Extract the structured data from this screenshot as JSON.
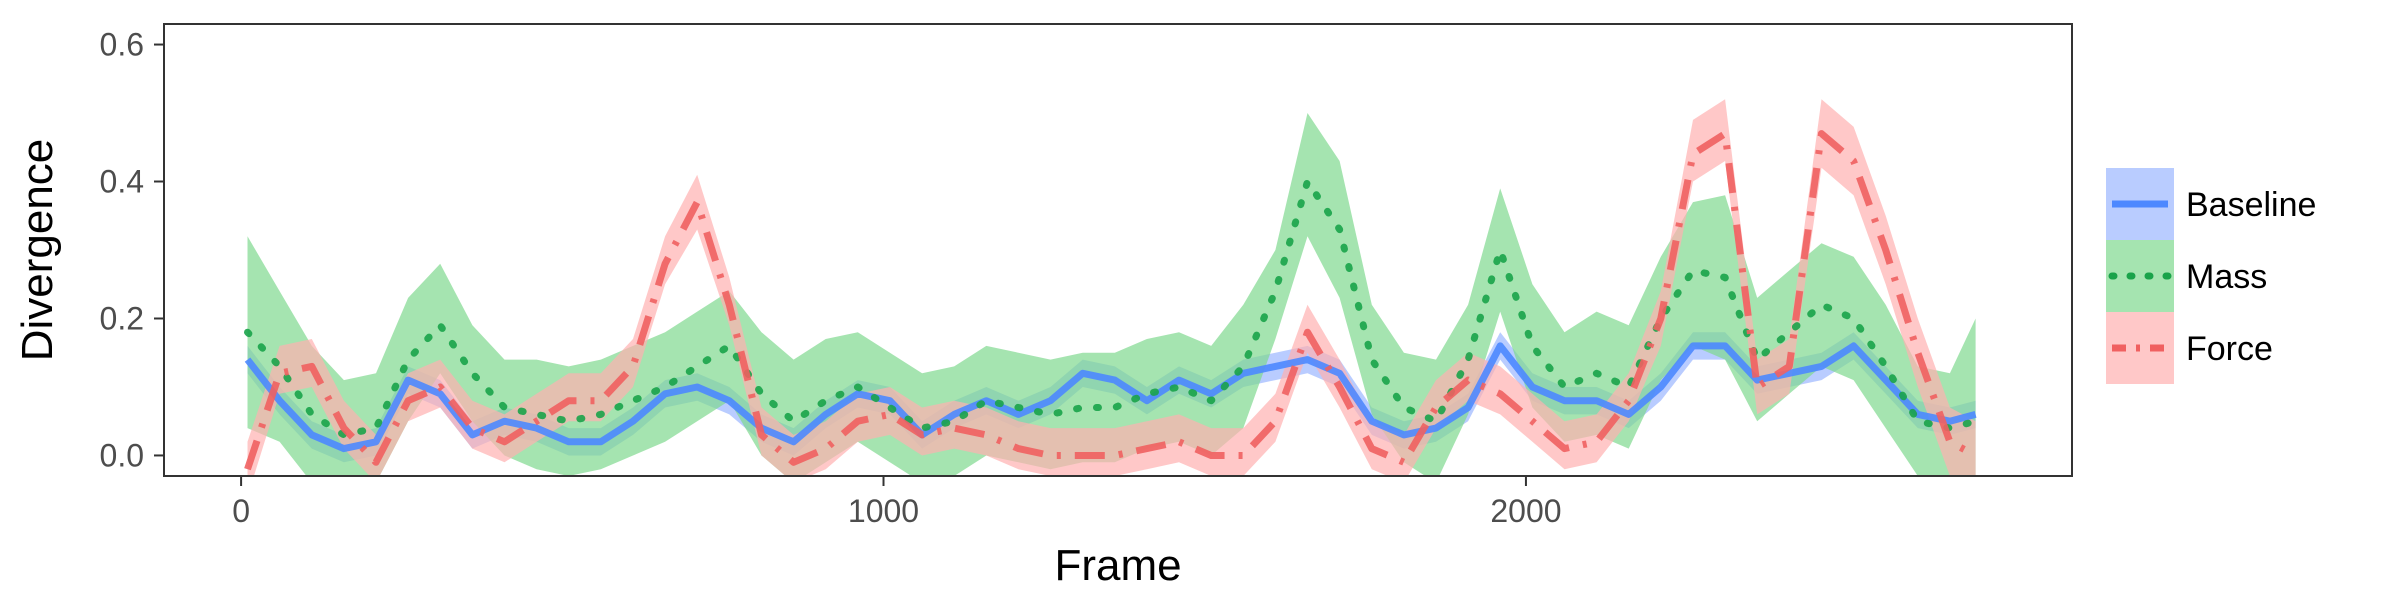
{
  "chart_data": {
    "type": "line",
    "xlabel": "Frame",
    "ylabel": "Divergence",
    "xlim": [
      -120,
      2850
    ],
    "ylim": [
      -0.03,
      0.63
    ],
    "xticks": [
      0,
      1000,
      2000
    ],
    "xtick_labels": [
      "0",
      "1000",
      "2000"
    ],
    "yticks": [
      0.0,
      0.2,
      0.4,
      0.6
    ],
    "ytick_labels": [
      "0.0",
      "0.2",
      "0.4",
      "0.6"
    ],
    "grid": false,
    "legend_position": "right",
    "x": [
      10,
      60,
      110,
      160,
      210,
      260,
      310,
      360,
      410,
      460,
      510,
      560,
      610,
      660,
      710,
      760,
      810,
      860,
      910,
      960,
      1010,
      1060,
      1110,
      1160,
      1210,
      1260,
      1310,
      1360,
      1410,
      1460,
      1510,
      1560,
      1610,
      1660,
      1710,
      1760,
      1810,
      1860,
      1910,
      1960,
      2010,
      2060,
      2110,
      2160,
      2210,
      2260,
      2310,
      2360,
      2410,
      2460,
      2510,
      2560,
      2610,
      2660,
      2700
    ],
    "series": [
      {
        "name": "Baseline",
        "color": "#4d88ff",
        "band_color": "#9bb7ff",
        "line_style": "solid",
        "values": [
          0.14,
          0.08,
          0.03,
          0.01,
          0.02,
          0.11,
          0.09,
          0.03,
          0.05,
          0.04,
          0.02,
          0.02,
          0.05,
          0.09,
          0.1,
          0.08,
          0.04,
          0.02,
          0.06,
          0.09,
          0.08,
          0.03,
          0.06,
          0.08,
          0.06,
          0.08,
          0.12,
          0.11,
          0.08,
          0.11,
          0.09,
          0.12,
          0.13,
          0.14,
          0.12,
          0.05,
          0.03,
          0.04,
          0.07,
          0.16,
          0.1,
          0.08,
          0.08,
          0.06,
          0.1,
          0.16,
          0.16,
          0.11,
          0.12,
          0.13,
          0.16,
          0.11,
          0.06,
          0.05,
          0.06
        ],
        "lower": [
          0.12,
          0.06,
          0.01,
          -0.01,
          0.0,
          0.09,
          0.07,
          0.01,
          0.03,
          0.02,
          0.0,
          0.0,
          0.03,
          0.07,
          0.08,
          0.06,
          0.02,
          0.0,
          0.04,
          0.07,
          0.06,
          0.01,
          0.04,
          0.06,
          0.04,
          0.06,
          0.1,
          0.09,
          0.06,
          0.09,
          0.07,
          0.1,
          0.11,
          0.12,
          0.1,
          0.03,
          0.01,
          0.02,
          0.05,
          0.14,
          0.08,
          0.06,
          0.06,
          0.04,
          0.08,
          0.14,
          0.14,
          0.09,
          0.1,
          0.11,
          0.14,
          0.09,
          0.04,
          0.03,
          0.04
        ],
        "upper": [
          0.16,
          0.1,
          0.05,
          0.03,
          0.04,
          0.13,
          0.11,
          0.05,
          0.07,
          0.06,
          0.04,
          0.04,
          0.07,
          0.11,
          0.12,
          0.1,
          0.06,
          0.04,
          0.08,
          0.11,
          0.1,
          0.05,
          0.08,
          0.1,
          0.08,
          0.1,
          0.14,
          0.13,
          0.1,
          0.13,
          0.11,
          0.14,
          0.15,
          0.16,
          0.14,
          0.07,
          0.05,
          0.06,
          0.09,
          0.18,
          0.12,
          0.1,
          0.1,
          0.08,
          0.12,
          0.18,
          0.18,
          0.13,
          0.14,
          0.15,
          0.18,
          0.13,
          0.08,
          0.07,
          0.08
        ]
      },
      {
        "name": "Mass",
        "color": "#1aa34a",
        "band_color": "#7fd98f",
        "line_style": "dotted",
        "values": [
          0.18,
          0.13,
          0.06,
          0.03,
          0.04,
          0.14,
          0.19,
          0.12,
          0.07,
          0.06,
          0.05,
          0.06,
          0.08,
          0.1,
          0.13,
          0.16,
          0.09,
          0.05,
          0.08,
          0.1,
          0.07,
          0.04,
          0.05,
          0.08,
          0.07,
          0.06,
          0.07,
          0.07,
          0.09,
          0.1,
          0.08,
          0.13,
          0.24,
          0.4,
          0.33,
          0.14,
          0.07,
          0.05,
          0.14,
          0.3,
          0.16,
          0.1,
          0.12,
          0.1,
          0.2,
          0.27,
          0.26,
          0.14,
          0.18,
          0.22,
          0.2,
          0.13,
          0.05,
          0.04,
          0.05
        ],
        "lower": [
          0.04,
          0.02,
          -0.04,
          -0.05,
          -0.04,
          0.05,
          0.12,
          0.05,
          0.0,
          -0.02,
          -0.03,
          -0.02,
          0.0,
          0.02,
          0.05,
          0.08,
          0.0,
          -0.04,
          -0.01,
          0.02,
          -0.01,
          -0.04,
          -0.03,
          0.0,
          -0.01,
          -0.02,
          -0.01,
          -0.01,
          0.01,
          0.02,
          0.0,
          0.04,
          0.17,
          0.32,
          0.23,
          0.06,
          -0.01,
          -0.04,
          0.06,
          0.21,
          0.07,
          0.02,
          0.03,
          0.01,
          0.11,
          0.16,
          0.14,
          0.05,
          0.09,
          0.13,
          0.11,
          0.04,
          -0.03,
          -0.04,
          -0.03
        ],
        "upper": [
          0.32,
          0.24,
          0.16,
          0.11,
          0.12,
          0.23,
          0.28,
          0.19,
          0.14,
          0.14,
          0.13,
          0.14,
          0.16,
          0.18,
          0.21,
          0.24,
          0.18,
          0.14,
          0.17,
          0.18,
          0.15,
          0.12,
          0.13,
          0.16,
          0.15,
          0.14,
          0.15,
          0.15,
          0.17,
          0.18,
          0.16,
          0.22,
          0.3,
          0.5,
          0.43,
          0.22,
          0.15,
          0.14,
          0.22,
          0.39,
          0.25,
          0.18,
          0.21,
          0.19,
          0.29,
          0.37,
          0.38,
          0.23,
          0.27,
          0.31,
          0.29,
          0.22,
          0.13,
          0.12,
          0.2
        ]
      },
      {
        "name": "Force",
        "color": "#f06060",
        "band_color": "#ffb0b0",
        "line_style": "dashdot",
        "values": [
          -0.02,
          0.12,
          0.13,
          0.04,
          -0.01,
          0.08,
          0.1,
          0.04,
          0.02,
          0.05,
          0.08,
          0.08,
          0.13,
          0.28,
          0.37,
          0.22,
          0.03,
          -0.01,
          0.01,
          0.05,
          0.06,
          0.03,
          0.04,
          0.03,
          0.01,
          0.0,
          0.0,
          0.0,
          0.01,
          0.02,
          0.0,
          0.0,
          0.05,
          0.18,
          0.1,
          0.01,
          -0.01,
          0.07,
          0.11,
          0.09,
          0.05,
          0.01,
          0.02,
          0.08,
          0.2,
          0.44,
          0.47,
          0.1,
          0.13,
          0.47,
          0.43,
          0.3,
          0.15,
          0.02,
          0.0
        ],
        "lower": [
          -0.06,
          0.09,
          0.1,
          0.01,
          -0.04,
          0.05,
          0.07,
          0.01,
          -0.01,
          0.02,
          0.05,
          0.05,
          0.1,
          0.25,
          0.33,
          0.19,
          0.0,
          -0.04,
          -0.02,
          0.02,
          0.03,
          0.0,
          0.01,
          0.0,
          -0.02,
          -0.03,
          -0.03,
          -0.03,
          -0.02,
          -0.01,
          -0.03,
          -0.03,
          0.02,
          0.15,
          0.07,
          -0.02,
          -0.04,
          0.04,
          0.08,
          0.06,
          0.02,
          -0.02,
          -0.01,
          0.05,
          0.16,
          0.4,
          0.43,
          0.06,
          0.09,
          0.42,
          0.38,
          0.25,
          0.1,
          -0.03,
          -0.05
        ],
        "upper": [
          0.02,
          0.16,
          0.17,
          0.08,
          0.03,
          0.12,
          0.14,
          0.08,
          0.06,
          0.09,
          0.12,
          0.12,
          0.17,
          0.32,
          0.41,
          0.26,
          0.07,
          0.03,
          0.05,
          0.09,
          0.1,
          0.07,
          0.08,
          0.07,
          0.05,
          0.04,
          0.04,
          0.04,
          0.05,
          0.06,
          0.04,
          0.04,
          0.09,
          0.22,
          0.14,
          0.05,
          0.03,
          0.11,
          0.15,
          0.13,
          0.09,
          0.05,
          0.06,
          0.12,
          0.24,
          0.49,
          0.52,
          0.14,
          0.17,
          0.52,
          0.48,
          0.35,
          0.2,
          0.07,
          0.05
        ]
      }
    ]
  }
}
